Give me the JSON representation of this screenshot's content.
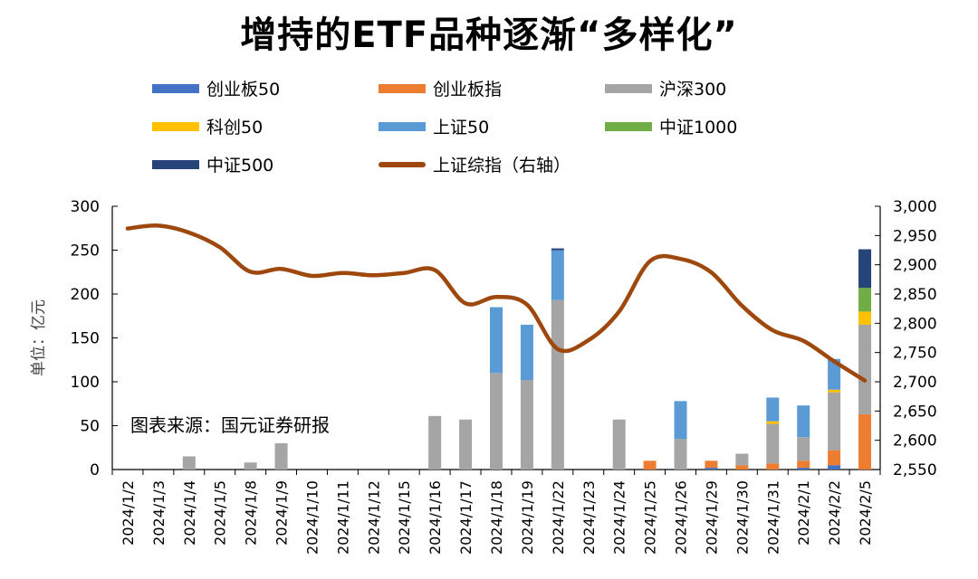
{
  "title": "增持的ETF品种逐渐“多样化”",
  "source_note": "图表来源：国元证券研报",
  "colors": {
    "cyb50": "#4472c4",
    "cybz": "#ed7d31",
    "hs300": "#a5a5a5",
    "kc50": "#ffc000",
    "sz50": "#5b9bd5",
    "zz1000": "#70ad47",
    "zz500": "#264478",
    "shindex": "#9e480e"
  },
  "legend": [
    {
      "key": "cyb50",
      "label": "创业板50",
      "kind": "bar"
    },
    {
      "key": "cybz",
      "label": "创业板指",
      "kind": "bar"
    },
    {
      "key": "hs300",
      "label": "沪深300",
      "kind": "bar"
    },
    {
      "key": "kc50",
      "label": "科创50",
      "kind": "bar"
    },
    {
      "key": "sz50",
      "label": "上证50",
      "kind": "bar"
    },
    {
      "key": "zz1000",
      "label": "中证1000",
      "kind": "bar"
    },
    {
      "key": "zz500",
      "label": "中证500",
      "kind": "bar"
    },
    {
      "key": "shindex",
      "label": "上证综指（右轴）",
      "kind": "line"
    }
  ],
  "chart_data": {
    "type": "bar",
    "stacked": true,
    "ylabel": "单位：亿元",
    "ylim": [
      0,
      300
    ],
    "yticks": [
      0,
      50,
      100,
      150,
      200,
      250,
      300
    ],
    "y2lim": [
      2550,
      3000
    ],
    "y2ticks": [
      "2,550",
      "2,600",
      "2,650",
      "2,700",
      "2,750",
      "2,800",
      "2,850",
      "2,900",
      "2,950",
      "3,000"
    ],
    "categories": [
      "2024/1/2",
      "2024/1/3",
      "2024/1/4",
      "2024/1/5",
      "2024/1/8",
      "2024/1/9",
      "2024/1/10",
      "2024/1/11",
      "2024/1/12",
      "2024/1/15",
      "2024/1/16",
      "2024/1/17",
      "2024/1/18",
      "2024/1/19",
      "2024/1/22",
      "2024/1/23",
      "2024/1/24",
      "2024/1/25",
      "2024/1/26",
      "2024/1/29",
      "2024/1/30",
      "2024/1/31",
      "2024/2/1",
      "2024/2/2",
      "2024/2/5"
    ],
    "series": [
      {
        "key": "cyb50",
        "name": "创业板50",
        "values": [
          0,
          0,
          0,
          0,
          0,
          0,
          0,
          0,
          0,
          0,
          0,
          0,
          0,
          0,
          0,
          0,
          0,
          0,
          0,
          2,
          0,
          0,
          2,
          5,
          0
        ]
      },
      {
        "key": "cybz",
        "name": "创业板指",
        "values": [
          0,
          0,
          0,
          0,
          0,
          0,
          0,
          0,
          0,
          0,
          0,
          0,
          0,
          0,
          0,
          0,
          0,
          10,
          0,
          8,
          5,
          7,
          8,
          17,
          63
        ]
      },
      {
        "key": "hs300",
        "name": "沪深300",
        "values": [
          0,
          0,
          15,
          0,
          8,
          30,
          0,
          0,
          0,
          0,
          61,
          57,
          110,
          102,
          193,
          0,
          57,
          0,
          35,
          0,
          13,
          45,
          27,
          66,
          102
        ]
      },
      {
        "key": "kc50",
        "name": "科创50",
        "values": [
          0,
          0,
          0,
          0,
          0,
          0,
          0,
          0,
          0,
          0,
          0,
          0,
          0,
          0,
          0,
          0,
          0,
          0,
          0,
          0,
          0,
          3,
          0,
          3,
          15
        ]
      },
      {
        "key": "sz50",
        "name": "上证50",
        "values": [
          0,
          0,
          0,
          0,
          0,
          0,
          0,
          0,
          0,
          0,
          0,
          0,
          75,
          63,
          57,
          0,
          0,
          0,
          43,
          0,
          0,
          27,
          36,
          35,
          0
        ]
      },
      {
        "key": "zz1000",
        "name": "中证1000",
        "values": [
          0,
          0,
          0,
          0,
          0,
          0,
          0,
          0,
          0,
          0,
          0,
          0,
          0,
          0,
          0,
          0,
          0,
          0,
          0,
          0,
          0,
          0,
          0,
          0,
          27
        ]
      },
      {
        "key": "zz500",
        "name": "中证500",
        "values": [
          0,
          0,
          0,
          0,
          0,
          0,
          0,
          0,
          0,
          0,
          0,
          0,
          0,
          0,
          2,
          0,
          0,
          0,
          0,
          0,
          0,
          0,
          0,
          0,
          44
        ]
      }
    ],
    "line": {
      "key": "shindex",
      "name": "上证综指（右轴）",
      "axis": "right",
      "values": [
        2962,
        2967,
        2955,
        2930,
        2888,
        2893,
        2881,
        2886,
        2882,
        2886,
        2891,
        2834,
        2845,
        2832,
        2756,
        2771,
        2820,
        2906,
        2910,
        2887,
        2830,
        2788,
        2770,
        2735,
        2702
      ]
    }
  }
}
